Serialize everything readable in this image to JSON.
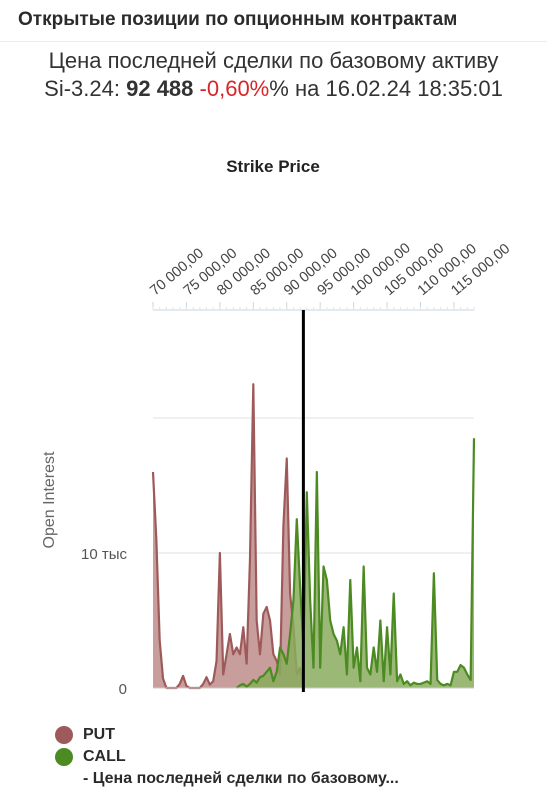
{
  "header": {
    "title": "Открытые позиции по опционным контрактам",
    "subtitle_line1": "Цена последней сделки по базовому активу",
    "ticker": "Si-3.24:",
    "last_price": "92 488",
    "change": "-0,60%",
    "change_suffix": "%",
    "date_prefix": "на",
    "datetime": "16.02.24 18:35:01"
  },
  "colors": {
    "put": "#9e5a5a",
    "put_fill": "#bd8d8a",
    "call": "#4c8a22",
    "call_fill": "#8aab5e",
    "price_line": "#000000",
    "change_negative": "#d6262b"
  },
  "chart_data": {
    "type": "area",
    "title": "Strike Price",
    "xlabel": "",
    "ylabel": "Open Interest",
    "x_axis_position": "top",
    "xlim": [
      70000,
      118000
    ],
    "ylim": [
      0,
      25000
    ],
    "x_ticks": [
      70000,
      75000,
      80000,
      85000,
      90000,
      95000,
      100000,
      105000,
      110000,
      115000
    ],
    "x_tick_labels": [
      "70 000,00",
      "75 000,00",
      "80 000,00",
      "85 000,00",
      "90 000,00",
      "95 000,00",
      "100 000,00",
      "105 000,00",
      "110 000,00",
      "115 000,00"
    ],
    "y_ticks": [
      0,
      10000
    ],
    "y_tick_labels": [
      "0",
      "10 тыс"
    ],
    "grid": true,
    "legend_position": "bottom-left",
    "vertical_line": {
      "x": 92488,
      "label": "- Цена последней сделки по базовому..."
    },
    "series": [
      {
        "name": "PUT",
        "x": [
          70000,
          70500,
          71000,
          71500,
          72000,
          72500,
          73000,
          73500,
          74000,
          74500,
          75000,
          75500,
          76000,
          76500,
          77000,
          77500,
          78000,
          78500,
          79000,
          79500,
          80000,
          80500,
          81000,
          81500,
          82000,
          82500,
          83000,
          83500,
          84000,
          84500,
          85000,
          85500,
          86000,
          86500,
          87000,
          87500,
          88000,
          88500,
          89000,
          89500,
          90000,
          90500,
          91000,
          91500,
          92000,
          92500
        ],
        "values": [
          16000,
          11000,
          3500,
          700,
          0,
          0,
          0,
          0,
          300,
          900,
          150,
          0,
          0,
          0,
          0,
          300,
          800,
          250,
          500,
          2000,
          10000,
          1000,
          2500,
          4000,
          2500,
          3000,
          2500,
          4500,
          1800,
          9500,
          22500,
          5000,
          2500,
          5500,
          6000,
          5000,
          2500,
          2000,
          1000,
          12000,
          17000,
          7000,
          4500,
          1000,
          1500,
          0
        ]
      },
      {
        "name": "CALL",
        "x": [
          82500,
          83000,
          83500,
          84000,
          84500,
          85000,
          85500,
          86000,
          86500,
          87000,
          87500,
          88000,
          88500,
          89000,
          89500,
          90000,
          90500,
          91000,
          91500,
          92000,
          92500,
          93000,
          93500,
          94000,
          94500,
          95000,
          95500,
          96000,
          96500,
          97000,
          97500,
          98000,
          98500,
          99000,
          99500,
          100000,
          100500,
          101000,
          101500,
          102000,
          102500,
          103000,
          103500,
          104000,
          104500,
          105000,
          105500,
          106000,
          106500,
          107000,
          107500,
          108000,
          108500,
          109000,
          109500,
          110000,
          110500,
          111000,
          111500,
          112000,
          112500,
          113000,
          113500,
          114000,
          114500,
          115000,
          115500,
          116000,
          116500,
          117000,
          117500,
          118000
        ],
        "values": [
          0,
          200,
          300,
          100,
          300,
          600,
          400,
          800,
          900,
          1200,
          1500,
          500,
          1200,
          3000,
          2500,
          1800,
          4000,
          6500,
          12500,
          7500,
          3000,
          14500,
          6500,
          1500,
          16000,
          1500,
          9000,
          8000,
          5000,
          4000,
          3500,
          2500,
          4500,
          1000,
          8000,
          1500,
          3000,
          500,
          9000,
          1500,
          1000,
          3000,
          1200,
          5000,
          500,
          4500,
          1000,
          7000,
          500,
          1000,
          300,
          500,
          200,
          400,
          300,
          300,
          400,
          500,
          300,
          8500,
          600,
          300,
          200,
          300,
          200,
          1200,
          1200,
          1700,
          1500,
          1000,
          600,
          18500
        ]
      }
    ]
  }
}
